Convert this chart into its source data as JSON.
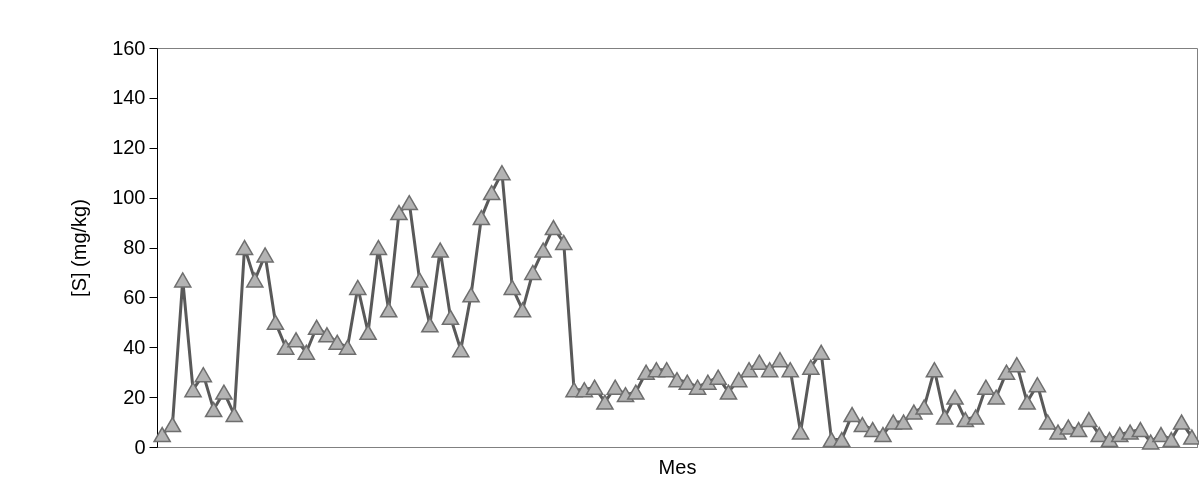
{
  "chart_data": {
    "type": "line",
    "xlabel": "Mes",
    "ylabel": "[S] (mg/kg)",
    "categories": [
      null,
      null,
      null,
      null,
      null,
      null,
      null,
      null,
      null,
      null,
      null,
      null,
      null,
      null,
      null,
      null,
      null,
      null,
      null,
      null,
      null,
      null,
      null,
      null,
      null,
      null,
      null,
      null,
      null,
      null,
      null,
      null,
      null,
      null,
      null,
      null,
      null,
      null,
      null,
      null,
      null,
      null,
      null,
      null,
      null,
      null,
      null,
      null,
      null,
      null,
      null,
      null,
      null,
      null,
      null,
      null,
      null,
      null,
      null,
      null,
      null,
      null,
      null,
      null,
      null,
      null,
      null,
      null,
      null,
      null,
      null,
      null,
      null,
      null,
      null,
      null,
      null,
      null,
      null,
      null,
      null,
      null,
      null,
      null,
      null,
      null,
      null,
      null,
      null,
      null,
      null,
      null,
      null,
      null,
      null,
      null,
      null,
      null,
      null,
      null,
      null
    ],
    "series": [
      {
        "color": "#595959",
        "values": [
          5,
          9,
          67,
          23,
          29,
          15,
          22,
          13,
          80,
          67,
          77,
          50,
          40,
          43,
          38,
          48,
          45,
          42,
          40,
          64,
          46,
          80,
          55,
          94,
          98,
          67,
          49,
          79,
          52,
          39,
          61,
          92,
          102,
          110,
          64,
          55,
          70,
          79,
          88,
          82,
          23,
          23,
          24,
          18,
          24,
          21,
          22,
          30,
          31,
          31,
          27,
          26,
          24,
          26,
          28,
          22,
          27,
          31,
          34,
          31,
          35,
          31,
          6,
          32,
          38,
          3,
          3,
          13,
          9,
          7,
          5,
          10,
          10,
          14,
          16,
          31,
          12,
          20,
          11,
          12,
          24,
          20,
          30,
          33,
          18,
          25,
          10,
          6,
          8,
          7,
          11,
          5,
          3,
          5,
          6,
          7,
          2,
          5,
          3,
          10,
          4
        ]
      }
    ],
    "marker": "triangle",
    "ylim": [
      0,
      160
    ],
    "yticks": [
      0,
      20,
      40,
      60,
      80,
      100,
      120,
      140,
      160
    ],
    "grid": false,
    "tick_labels": "y"
  }
}
